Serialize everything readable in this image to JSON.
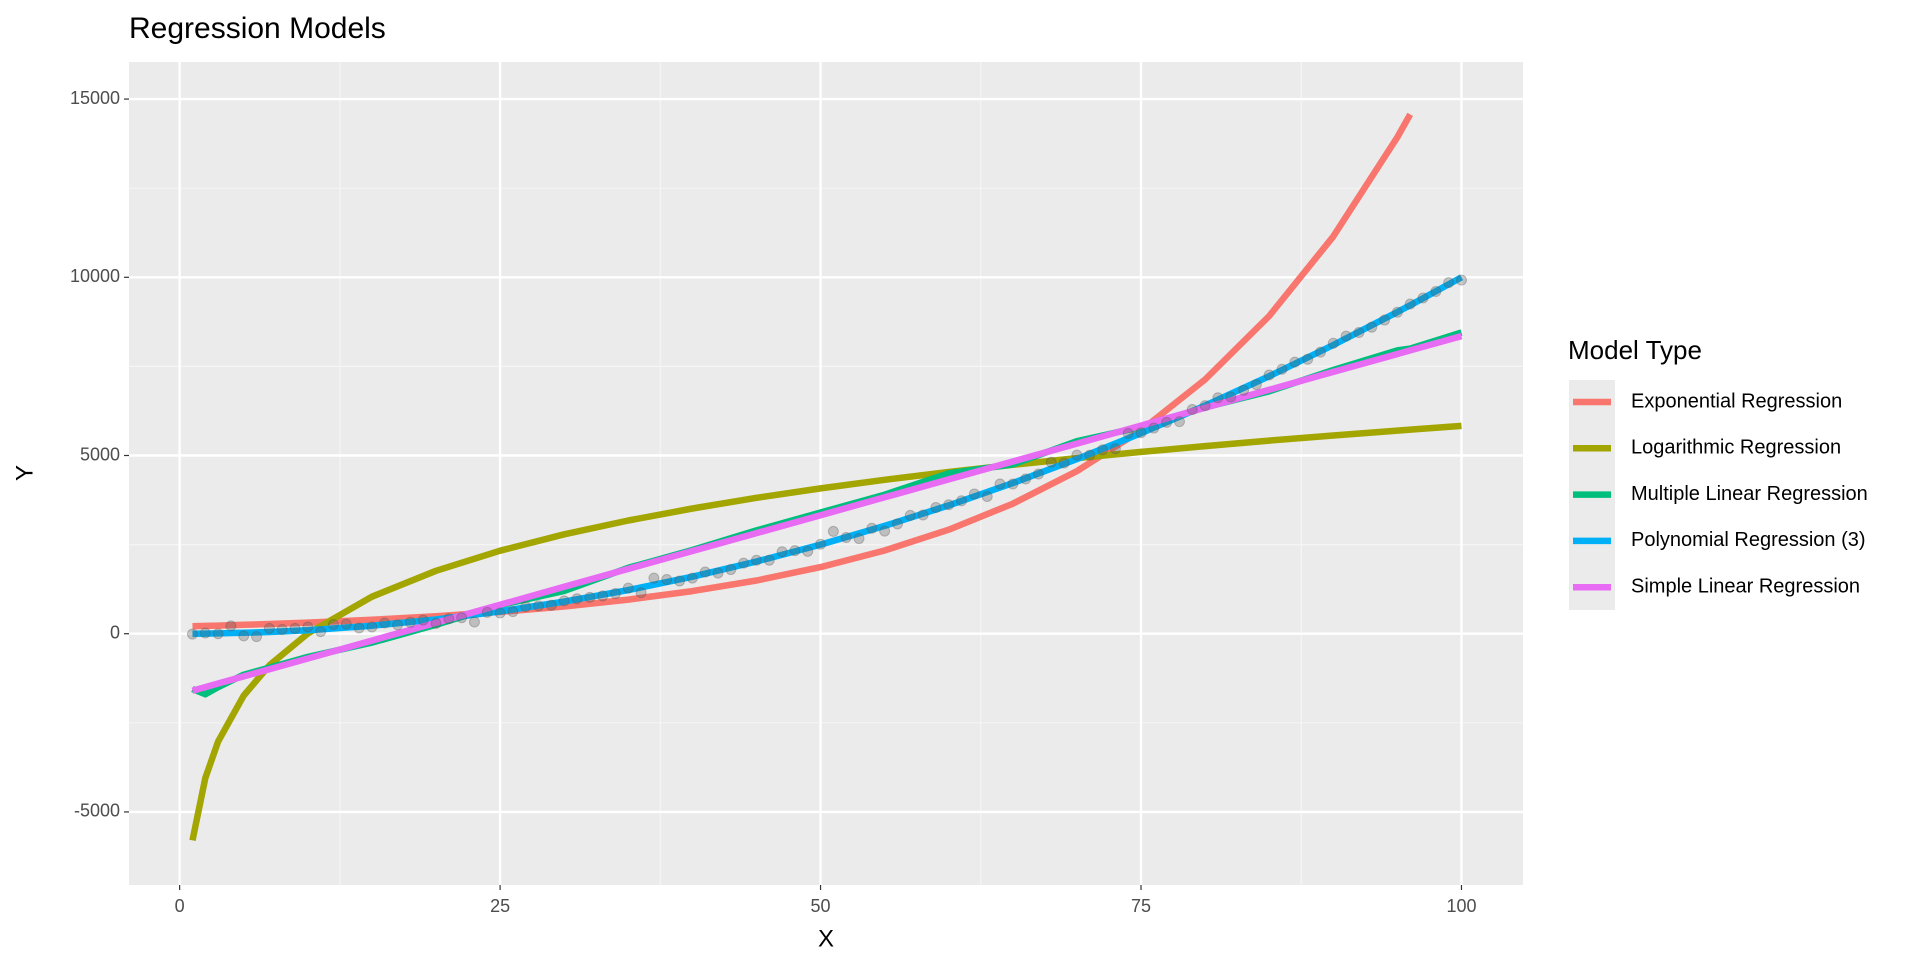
{
  "chart_data": {
    "type": "line",
    "title": "Regression Models",
    "x_label": "X",
    "y_label": "Y",
    "legend_title": "Model Type",
    "legend_position": "right",
    "grid": true,
    "minor_grid": true,
    "xlim": [
      -3.95,
      104.8
    ],
    "ylim": [
      -7050,
      16040
    ],
    "xticks": [
      0,
      25,
      50,
      75,
      100
    ],
    "yticks": [
      -5000,
      0,
      5000,
      10000,
      15000
    ],
    "x": [
      1,
      2,
      3,
      5,
      7,
      10,
      15,
      20,
      25,
      30,
      35,
      40,
      45,
      50,
      55,
      60,
      65,
      70,
      75,
      80,
      85,
      90,
      95,
      96,
      100
    ],
    "series": [
      {
        "name": "Exponential Regression",
        "color": "#F8766D",
        "values": [
          209,
          219,
          229,
          250,
          273,
          313,
          391,
          489,
          612,
          764,
          956,
          1195,
          1494,
          1868,
          2335,
          2919,
          3649,
          4563,
          5704,
          7131,
          8915,
          11146,
          13934,
          14570,
          null
        ]
      },
      {
        "name": "Logarithmic Regression",
        "color": "#A3A500",
        "values": [
          -5800,
          -4050,
          -3026,
          -1736,
          -887,
          5,
          1038,
          1764,
          2328,
          2788,
          3177,
          3514,
          3812,
          4078,
          4318,
          4538,
          4740,
          4927,
          5102,
          5265,
          5418,
          5562,
          5699,
          5726,
          5830
        ]
      },
      {
        "name": "Multiple Linear Regression",
        "color": "#00BF7D",
        "values": [
          -1550,
          -1700,
          -1500,
          -1150,
          -950,
          -650,
          -250,
          250,
          800,
          1200,
          1850,
          2350,
          2900,
          3400,
          3900,
          4500,
          4750,
          5400,
          5800,
          6350,
          6800,
          7400,
          7950,
          8000,
          8450
        ]
      },
      {
        "name": "Polynomial Regression (3)",
        "color": "#00B0F6",
        "values": [
          1,
          4,
          9,
          25,
          49,
          100,
          225,
          400,
          625,
          900,
          1225,
          1600,
          2025,
          2500,
          3025,
          3600,
          4225,
          4900,
          5625,
          6400,
          7225,
          8100,
          9025,
          9216,
          10000
        ]
      },
      {
        "name": "Simple Linear Regression",
        "color": "#E76BF3",
        "values": [
          -1600,
          -1499,
          -1398,
          -1198,
          -997,
          -695,
          -193,
          310,
          812,
          1315,
          1818,
          2320,
          2822,
          3325,
          3827,
          4330,
          4832,
          5335,
          5838,
          6340,
          6842,
          7345,
          7848,
          7948,
          8350
        ]
      }
    ],
    "points": {
      "color": "#555555",
      "x": [
        1,
        2,
        3,
        4,
        5,
        6,
        7,
        8,
        9,
        10,
        11,
        12,
        13,
        14,
        15,
        16,
        17,
        18,
        19,
        20,
        21,
        22,
        23,
        24,
        25,
        26,
        27,
        28,
        29,
        30,
        31,
        32,
        33,
        34,
        35,
        36,
        37,
        38,
        39,
        40,
        41,
        42,
        43,
        44,
        45,
        46,
        47,
        48,
        49,
        50,
        51,
        52,
        53,
        54,
        55,
        56,
        57,
        58,
        59,
        60,
        61,
        62,
        63,
        64,
        65,
        66,
        67,
        68,
        69,
        70,
        71,
        72,
        73,
        74,
        75,
        76,
        77,
        78,
        79,
        80,
        81,
        82,
        83,
        84,
        85,
        86,
        87,
        88,
        89,
        90,
        91,
        92,
        93,
        94,
        95,
        96,
        97,
        98,
        99,
        100
      ],
      "values": [
        -10,
        20,
        0,
        220,
        -60,
        -80,
        150,
        120,
        150,
        190,
        60,
        260,
        270,
        160,
        190,
        300,
        250,
        320,
        380,
        290,
        420,
        450,
        330,
        600,
        580,
        620,
        760,
        780,
        800,
        920,
        980,
        1020,
        1060,
        1130,
        1280,
        1150,
        1560,
        1520,
        1480,
        1560,
        1730,
        1700,
        1800,
        1980,
        2060,
        2060,
        2300,
        2330,
        2310,
        2510,
        2870,
        2700,
        2670,
        2960,
        2880,
        3080,
        3320,
        3330,
        3540,
        3620,
        3730,
        3920,
        3850,
        4200,
        4200,
        4340,
        4480,
        4810,
        4790,
        5010,
        5010,
        5160,
        5190,
        5620,
        5640,
        5770,
        5930,
        5950,
        6290,
        6400,
        6620,
        6640,
        6830,
        6990,
        7260,
        7420,
        7620,
        7700,
        7900,
        8150,
        8350,
        8450,
        8600,
        8800,
        9020,
        9250,
        9420,
        9600,
        9850,
        9920
      ]
    }
  }
}
